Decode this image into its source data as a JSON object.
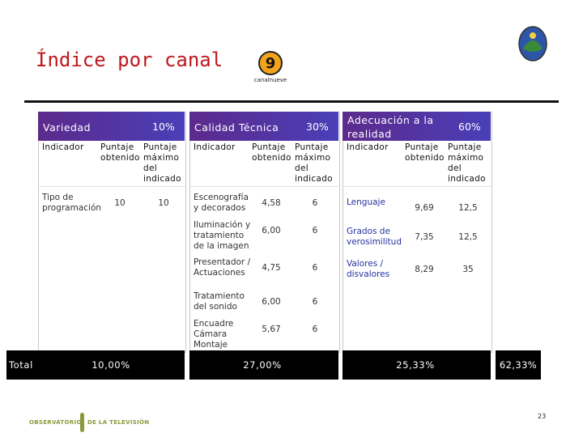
{
  "title": "Índice por canal",
  "logo": {
    "number": "9",
    "text": "canalnueve"
  },
  "table": {
    "columns": [
      "Indicador",
      "Puntaje obtenido",
      "Puntaje máximo del indicado"
    ],
    "groups": [
      {
        "name": "Variedad",
        "weight": "10%",
        "rows": [
          [
            "Tipo de programación",
            "10",
            "10"
          ]
        ],
        "total": "10,00%"
      },
      {
        "name": "Calidad Técnica",
        "weight": "30%",
        "rows": [
          [
            "Escenografía y decorados",
            "4,58",
            "6"
          ],
          [
            "Iluminación y tratamiento de la imagen",
            "6,00",
            "6"
          ],
          [
            "Presentador / Actuaciones",
            "4,75",
            "6"
          ],
          [
            "Tratamiento del sonido",
            "6,00",
            "6"
          ],
          [
            "Encuadre Cámara Montaje",
            "5,67",
            "6"
          ]
        ],
        "total": "27,00%"
      },
      {
        "name": "Adecuación a la realidad",
        "weight": "60%",
        "rows": [
          [
            "Lenguaje",
            "9,69",
            "12,5"
          ],
          [
            "Grados de verosimilitud",
            "7,35",
            "12,5"
          ],
          [
            "Valores / disvalores",
            "8,29",
            "35"
          ]
        ],
        "total": "25,33%"
      }
    ],
    "total_label": "Total",
    "grand_total": "62,33%"
  },
  "footer": {
    "org_left": "OBSERVATORIO",
    "org_right": "DE LA TELEVISIÓN",
    "page": "23"
  }
}
